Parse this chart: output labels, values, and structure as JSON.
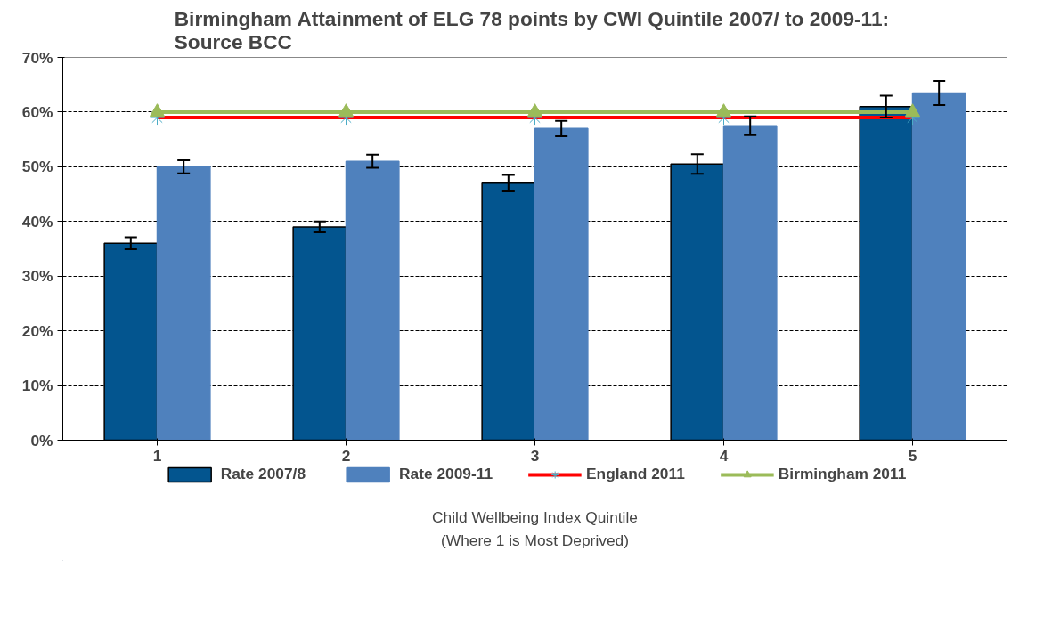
{
  "chart_data": {
    "type": "bar",
    "title": "Birmingham Attainment of ELG  78 points by CWI Quintile 2007/ to 2009-11:\nSource BCC",
    "xlabel": "Child Wellbeing Index Quintile\n(Where 1 is Most Deprived)",
    "categories": [
      "1",
      "2",
      "3",
      "4",
      "5"
    ],
    "series": [
      {
        "name": "Rate 2007/8",
        "color": "#03558f",
        "values": [
          36,
          39,
          47,
          50.5,
          61
        ],
        "errors": [
          1.1,
          1.0,
          1.5,
          1.8,
          2.0
        ]
      },
      {
        "name": "Rate 2009-11",
        "color": "#4f81bd",
        "values": [
          50,
          51,
          57,
          57.5,
          63.5
        ],
        "errors": [
          1.2,
          1.2,
          1.4,
          1.7,
          2.2
        ]
      },
      {
        "name": "England 2011",
        "type": "line",
        "color": "#ff0000",
        "marker": "cross",
        "values": [
          59,
          59,
          59,
          59,
          59
        ]
      },
      {
        "name": "Birmingham 2011",
        "type": "line",
        "color": "#9bbb59",
        "marker": "triangle",
        "values": [
          60,
          60,
          60,
          60,
          60
        ]
      }
    ],
    "ylim": [
      0,
      70
    ],
    "yticks": [
      {
        "value": 0,
        "label": "0%"
      },
      {
        "value": 10,
        "label": "10%"
      },
      {
        "value": 20,
        "label": "20%"
      },
      {
        "value": 30,
        "label": "30%"
      },
      {
        "value": 40,
        "label": "40%"
      },
      {
        "value": 50,
        "label": "50%"
      },
      {
        "value": 60,
        "label": "60%"
      },
      {
        "value": 70,
        "label": "70%"
      }
    ],
    "grid": "y",
    "legend": "bottom"
  }
}
